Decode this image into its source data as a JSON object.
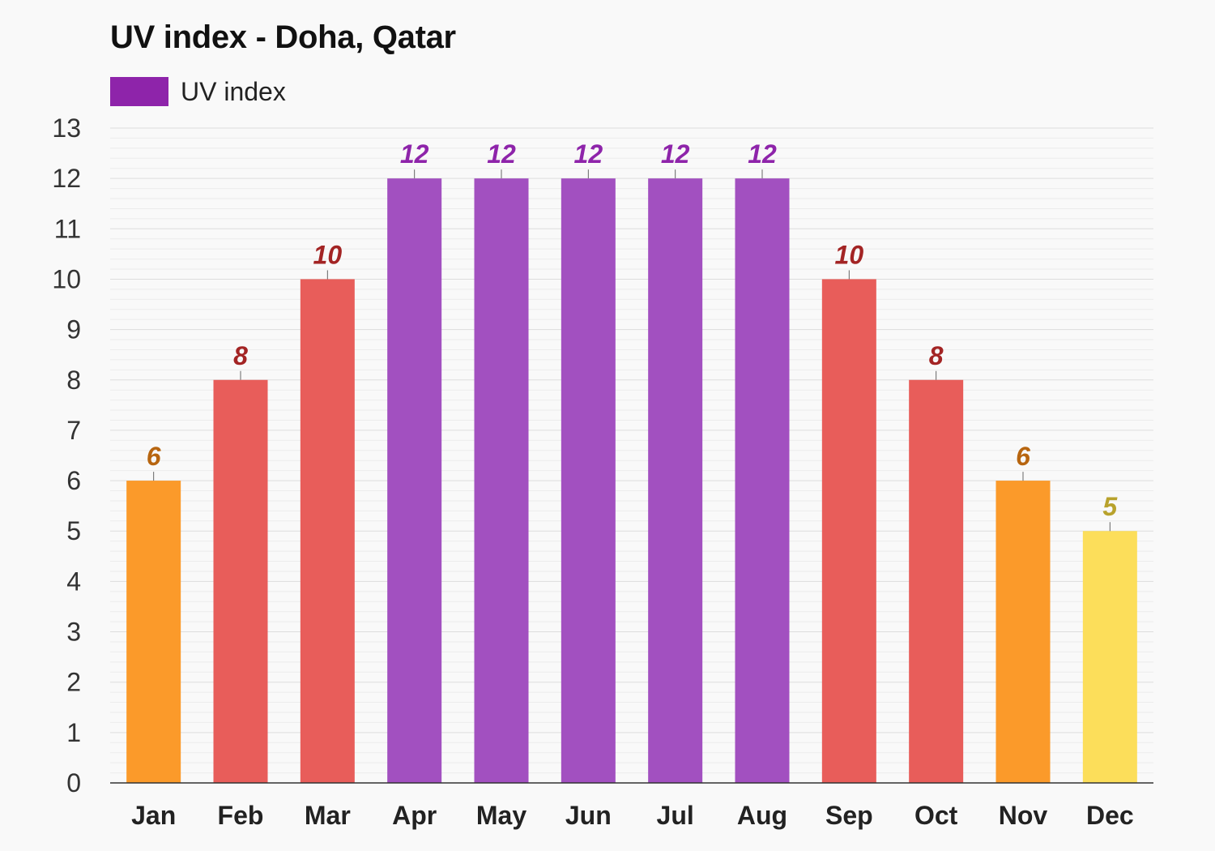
{
  "title": "UV index - Doha, Qatar",
  "legend": {
    "label": "UV index",
    "color": "#8e24aa"
  },
  "chart_data": {
    "type": "bar",
    "title": "UV index - Doha, Qatar",
    "xlabel": "",
    "ylabel": "",
    "categories": [
      "Jan",
      "Feb",
      "Mar",
      "Apr",
      "May",
      "Jun",
      "Jul",
      "Aug",
      "Sep",
      "Oct",
      "Nov",
      "Dec"
    ],
    "series": [
      {
        "name": "UV index",
        "values": [
          6,
          8,
          10,
          12,
          12,
          12,
          12,
          12,
          10,
          8,
          6,
          5
        ]
      }
    ],
    "ylim": [
      0,
      13
    ],
    "yticks": [
      0,
      1,
      2,
      3,
      4,
      5,
      6,
      7,
      8,
      9,
      10,
      11,
      12,
      13
    ],
    "grid": true,
    "legend_position": "top-left",
    "bar_colors": [
      "#fb9a2a",
      "#e85d5a",
      "#e85d5a",
      "#a250c0",
      "#a250c0",
      "#a250c0",
      "#a250c0",
      "#a250c0",
      "#e85d5a",
      "#e85d5a",
      "#fb9a2a",
      "#fcde5a"
    ],
    "label_colors": [
      "#b7650f",
      "#a32424",
      "#a32424",
      "#8e24aa",
      "#8e24aa",
      "#8e24aa",
      "#8e24aa",
      "#8e24aa",
      "#a32424",
      "#a32424",
      "#b7650f",
      "#b8a22c"
    ]
  }
}
